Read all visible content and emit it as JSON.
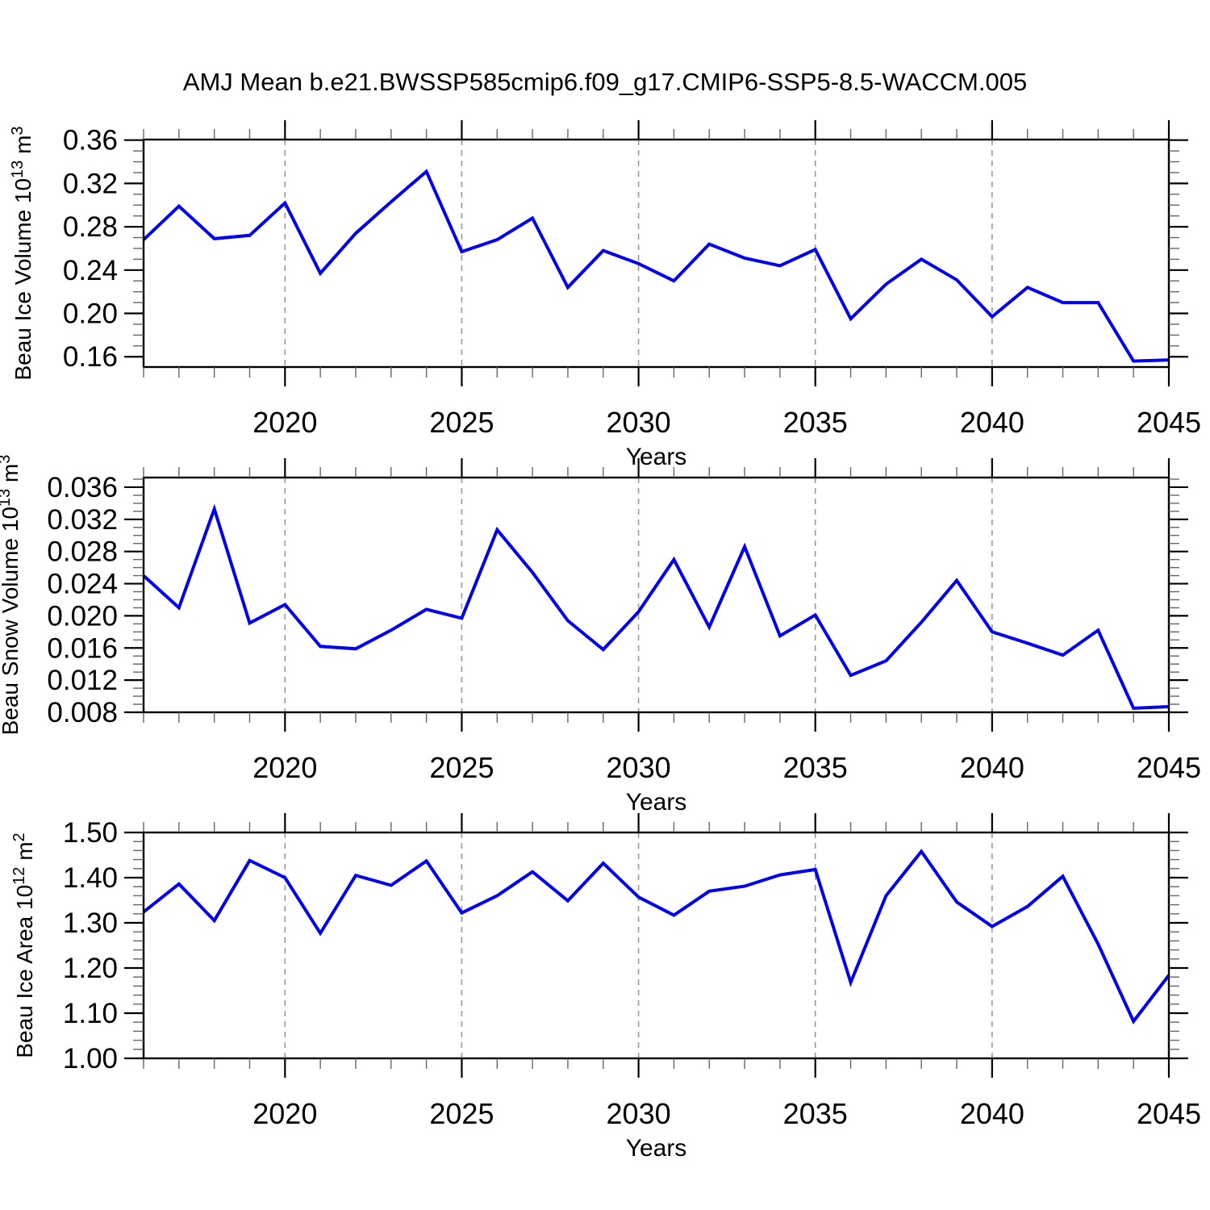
{
  "title": "AMJ Mean b.e21.BWSSP585cmip6.f09_g17.CMIP6-SSP5-8.5-WACCM.005",
  "colors": {
    "line": "#0000ee",
    "grid": "#999999",
    "frame": "#000000",
    "major_tick": "#000000",
    "minor_tick": "#666666",
    "text": "#000000",
    "background": "#ffffff"
  },
  "x_axis": {
    "label": "Years",
    "range": [
      2016,
      2045
    ],
    "major_ticks": [
      2020,
      2025,
      2030,
      2035,
      2040,
      2045
    ],
    "gridline_years": [
      2020,
      2025,
      2030,
      2035,
      2040
    ],
    "minor_step": 1,
    "years": [
      2016,
      2017,
      2018,
      2019,
      2020,
      2021,
      2022,
      2023,
      2024,
      2025,
      2026,
      2027,
      2028,
      2029,
      2030,
      2031,
      2032,
      2033,
      2034,
      2035,
      2036,
      2037,
      2038,
      2039,
      2040,
      2041,
      2042,
      2043,
      2044,
      2045
    ]
  },
  "chart_data": [
    {
      "type": "line",
      "id": "beau-ice-volume",
      "ylabel": "Beau Ice Volume 10^13 m^3",
      "ylabel_segments": [
        {
          "t": "Beau Ice Volume 10"
        },
        {
          "t": "13",
          "sup": true
        },
        {
          "t": " m"
        },
        {
          "t": "3",
          "sup": true
        }
      ],
      "xlabel": "Years",
      "values": [
        0.268,
        0.299,
        0.269,
        0.272,
        0.302,
        0.237,
        0.274,
        0.303,
        0.331,
        0.257,
        0.268,
        0.288,
        0.224,
        0.258,
        0.246,
        0.23,
        0.264,
        0.251,
        0.244,
        0.259,
        0.195,
        0.227,
        0.25,
        0.231,
        0.197,
        0.224,
        0.21,
        0.21,
        0.156,
        0.157
      ],
      "axis": {
        "yticks": [
          0.16,
          0.2,
          0.24,
          0.28,
          0.32,
          0.36
        ],
        "minor_step": 0.01,
        "frame_top": 0.3605,
        "frame_bottom": 0.1505,
        "decimals": 2,
        "grid": "vertical-dashed-only"
      }
    },
    {
      "type": "line",
      "id": "beau-snow-volume",
      "ylabel": "Beau Snow Volume 10^13 m^3",
      "ylabel_segments": [
        {
          "t": "Beau Snow Volume 10"
        },
        {
          "t": "13",
          "sup": true
        },
        {
          "t": " m"
        },
        {
          "t": "3",
          "sup": true
        }
      ],
      "xlabel": "Years",
      "values": [
        0.025,
        0.021,
        0.0333,
        0.0191,
        0.0214,
        0.0162,
        0.0159,
        0.0182,
        0.0208,
        0.0197,
        0.0307,
        0.0254,
        0.0194,
        0.0158,
        0.0205,
        0.027,
        0.0186,
        0.0286,
        0.0175,
        0.0201,
        0.0126,
        0.0144,
        0.0192,
        0.0244,
        0.018,
        0.0166,
        0.0151,
        0.0182,
        0.0085,
        0.0087
      ],
      "axis": {
        "yticks": [
          0.008,
          0.012,
          0.016,
          0.02,
          0.024,
          0.028,
          0.032,
          0.036
        ],
        "minor_step": 0.001,
        "frame_top": 0.0372,
        "frame_bottom": 0.008,
        "decimals": 3,
        "grid": "vertical-dashed-only"
      }
    },
    {
      "type": "line",
      "id": "beau-ice-area",
      "ylabel": "Beau Ice Area 10^12 m^2",
      "ylabel_segments": [
        {
          "t": "Beau Ice Area 10"
        },
        {
          "t": "12",
          "sup": true
        },
        {
          "t": " m"
        },
        {
          "t": "2",
          "sup": true
        }
      ],
      "xlabel": "Years",
      "values": [
        1.324,
        1.386,
        1.305,
        1.438,
        1.4,
        1.277,
        1.405,
        1.383,
        1.437,
        1.322,
        1.36,
        1.413,
        1.349,
        1.432,
        1.357,
        1.317,
        1.37,
        1.381,
        1.406,
        1.418,
        1.168,
        1.36,
        1.458,
        1.346,
        1.292,
        1.336,
        1.403,
        1.253,
        1.082,
        1.184
      ],
      "axis": {
        "yticks": [
          1.0,
          1.1,
          1.2,
          1.3,
          1.4,
          1.5
        ],
        "minor_step": 0.02,
        "frame_top": 1.5,
        "frame_bottom": 1.0,
        "decimals": 2,
        "grid": "vertical-dashed-only"
      }
    }
  ]
}
